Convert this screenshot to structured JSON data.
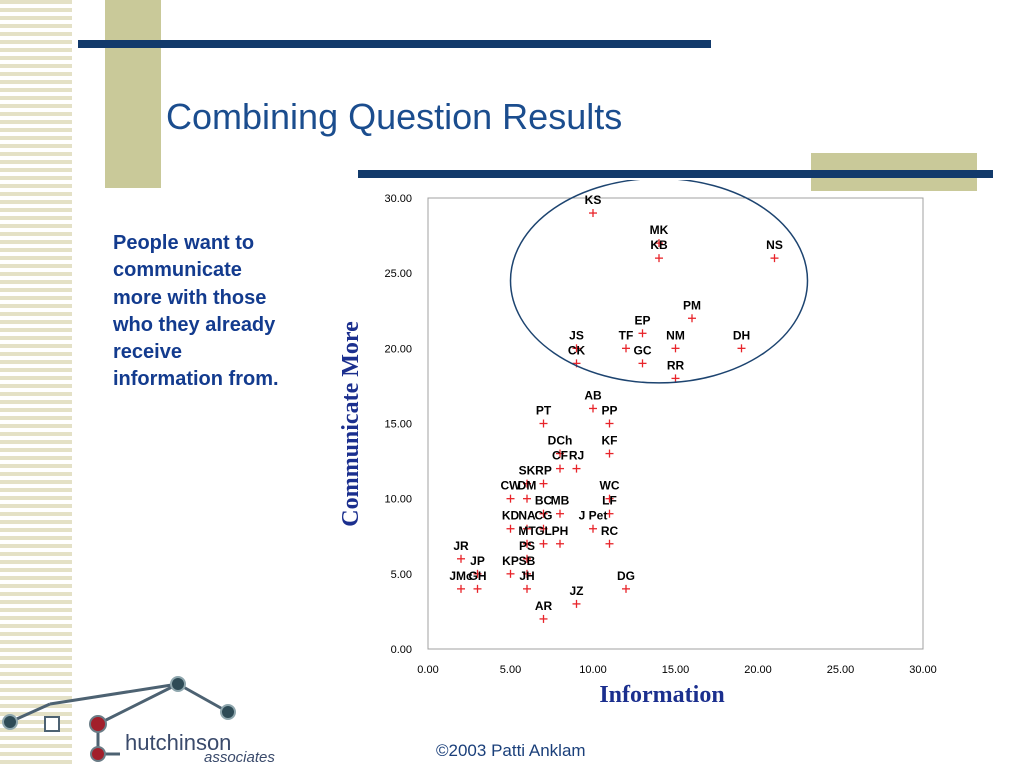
{
  "slide": {
    "title": "Combining Question Results",
    "body_text": "People want to communicate more with those who they already receive information from.",
    "footer": "©2003 Patti Anklam",
    "logo": {
      "line1": "hutchinson",
      "line2": "associates"
    }
  },
  "colors": {
    "title": "#1b4d8e",
    "accent_bar": "#123a6b",
    "accent_block": "#c9c999",
    "marker": "#e8242a",
    "ellipse": "#1d4470",
    "axis_label": "#1b2f8e"
  },
  "chart_data": {
    "type": "scatter",
    "xlabel": "Information",
    "ylabel": "Communicate More",
    "xlim": [
      0,
      30
    ],
    "ylim": [
      0,
      30
    ],
    "x_ticks": [
      "0.00",
      "5.00",
      "10.00",
      "15.00",
      "20.00",
      "25.00",
      "30.00"
    ],
    "y_ticks": [
      "0.00",
      "5.00",
      "10.00",
      "15.00",
      "20.00",
      "25.00",
      "30.00"
    ],
    "grid": false,
    "points": [
      {
        "label": "KS",
        "x": 10,
        "y": 29
      },
      {
        "label": "MK",
        "x": 14,
        "y": 27
      },
      {
        "label": "KB",
        "x": 14,
        "y": 26
      },
      {
        "label": "NS",
        "x": 21,
        "y": 26
      },
      {
        "label": "PM",
        "x": 16,
        "y": 22
      },
      {
        "label": "EP",
        "x": 13,
        "y": 21
      },
      {
        "label": "JS",
        "x": 9,
        "y": 20
      },
      {
        "label": "TF",
        "x": 12,
        "y": 20
      },
      {
        "label": "NM",
        "x": 15,
        "y": 20
      },
      {
        "label": "DH",
        "x": 19,
        "y": 20
      },
      {
        "label": "CK",
        "x": 9,
        "y": 19
      },
      {
        "label": "GC",
        "x": 13,
        "y": 19
      },
      {
        "label": "RR",
        "x": 15,
        "y": 18
      },
      {
        "label": "AB",
        "x": 10,
        "y": 16
      },
      {
        "label": "PT",
        "x": 7,
        "y": 15
      },
      {
        "label": "PP",
        "x": 11,
        "y": 15
      },
      {
        "label": "DCh",
        "x": 8,
        "y": 13
      },
      {
        "label": "KF",
        "x": 11,
        "y": 13
      },
      {
        "label": "CF",
        "x": 8,
        "y": 12
      },
      {
        "label": "RJ",
        "x": 9,
        "y": 12
      },
      {
        "label": "SK",
        "x": 6,
        "y": 11
      },
      {
        "label": "RP",
        "x": 7,
        "y": 11
      },
      {
        "label": "CW",
        "x": 5,
        "y": 10
      },
      {
        "label": "DM",
        "x": 6,
        "y": 10
      },
      {
        "label": "WC",
        "x": 11,
        "y": 10
      },
      {
        "label": "BC",
        "x": 7,
        "y": 9
      },
      {
        "label": "MB",
        "x": 8,
        "y": 9
      },
      {
        "label": "LF",
        "x": 11,
        "y": 9
      },
      {
        "label": "KD",
        "x": 5,
        "y": 8
      },
      {
        "label": "NA",
        "x": 6,
        "y": 8
      },
      {
        "label": "CG",
        "x": 7,
        "y": 8
      },
      {
        "label": "J Pet",
        "x": 10,
        "y": 8
      },
      {
        "label": "MT",
        "x": 6,
        "y": 7
      },
      {
        "label": "GL",
        "x": 7,
        "y": 7
      },
      {
        "label": "PH",
        "x": 8,
        "y": 7
      },
      {
        "label": "RC",
        "x": 11,
        "y": 7
      },
      {
        "label": "JR",
        "x": 2,
        "y": 6
      },
      {
        "label": "PS",
        "x": 6,
        "y": 6
      },
      {
        "label": "JP",
        "x": 3,
        "y": 5
      },
      {
        "label": "KP",
        "x": 5,
        "y": 5
      },
      {
        "label": "SB",
        "x": 6,
        "y": 5
      },
      {
        "label": "JMc",
        "x": 2,
        "y": 4
      },
      {
        "label": "GH",
        "x": 3,
        "y": 4
      },
      {
        "label": "JH",
        "x": 6,
        "y": 4
      },
      {
        "label": "DG",
        "x": 12,
        "y": 4
      },
      {
        "label": "JZ",
        "x": 9,
        "y": 3
      },
      {
        "label": "AR",
        "x": 7,
        "y": 2
      }
    ],
    "highlight_ellipse": {
      "cx": 14,
      "cy": 24.5,
      "rx": 9,
      "ry": 6.8
    }
  }
}
